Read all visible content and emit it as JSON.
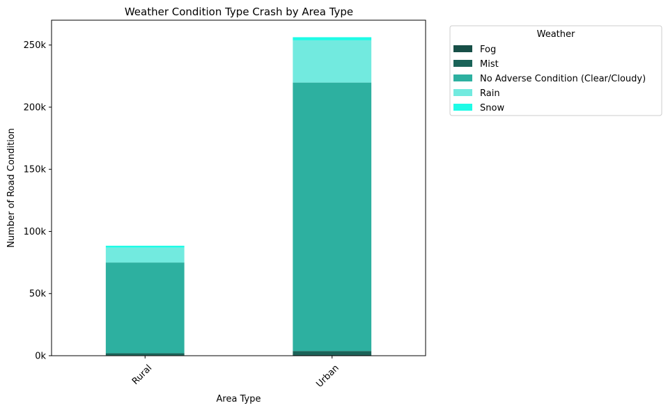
{
  "chart_data": {
    "type": "bar",
    "stacked": true,
    "title": "Weather Condition Type Crash by Area Type",
    "xlabel": "Area Type",
    "ylabel": "Number of Road Condition",
    "categories": [
      "Rural",
      "Urban"
    ],
    "ylim": [
      0,
      270000
    ],
    "yticks": [
      0,
      50000,
      100000,
      150000,
      200000,
      250000
    ],
    "ytick_labels": [
      "0k",
      "50k",
      "100k",
      "150k",
      "200k",
      "250k"
    ],
    "grid": false,
    "series": [
      {
        "name": "Fog",
        "color": "#174f47",
        "values": [
          500,
          800
        ]
      },
      {
        "name": "Mist",
        "color": "#1a6358",
        "values": [
          1500,
          3000
        ]
      },
      {
        "name": "No Adverse Condition (Clear/Cloudy)",
        "color": "#2db0a0",
        "values": [
          73000,
          216000
        ]
      },
      {
        "name": "Rain",
        "color": "#72eadf",
        "values": [
          12000,
          34000
        ]
      },
      {
        "name": "Snow",
        "color": "#1ffbe6",
        "values": [
          1500,
          2500
        ]
      }
    ],
    "legend": {
      "title": "Weather",
      "placement": "outside-upper-right"
    }
  }
}
